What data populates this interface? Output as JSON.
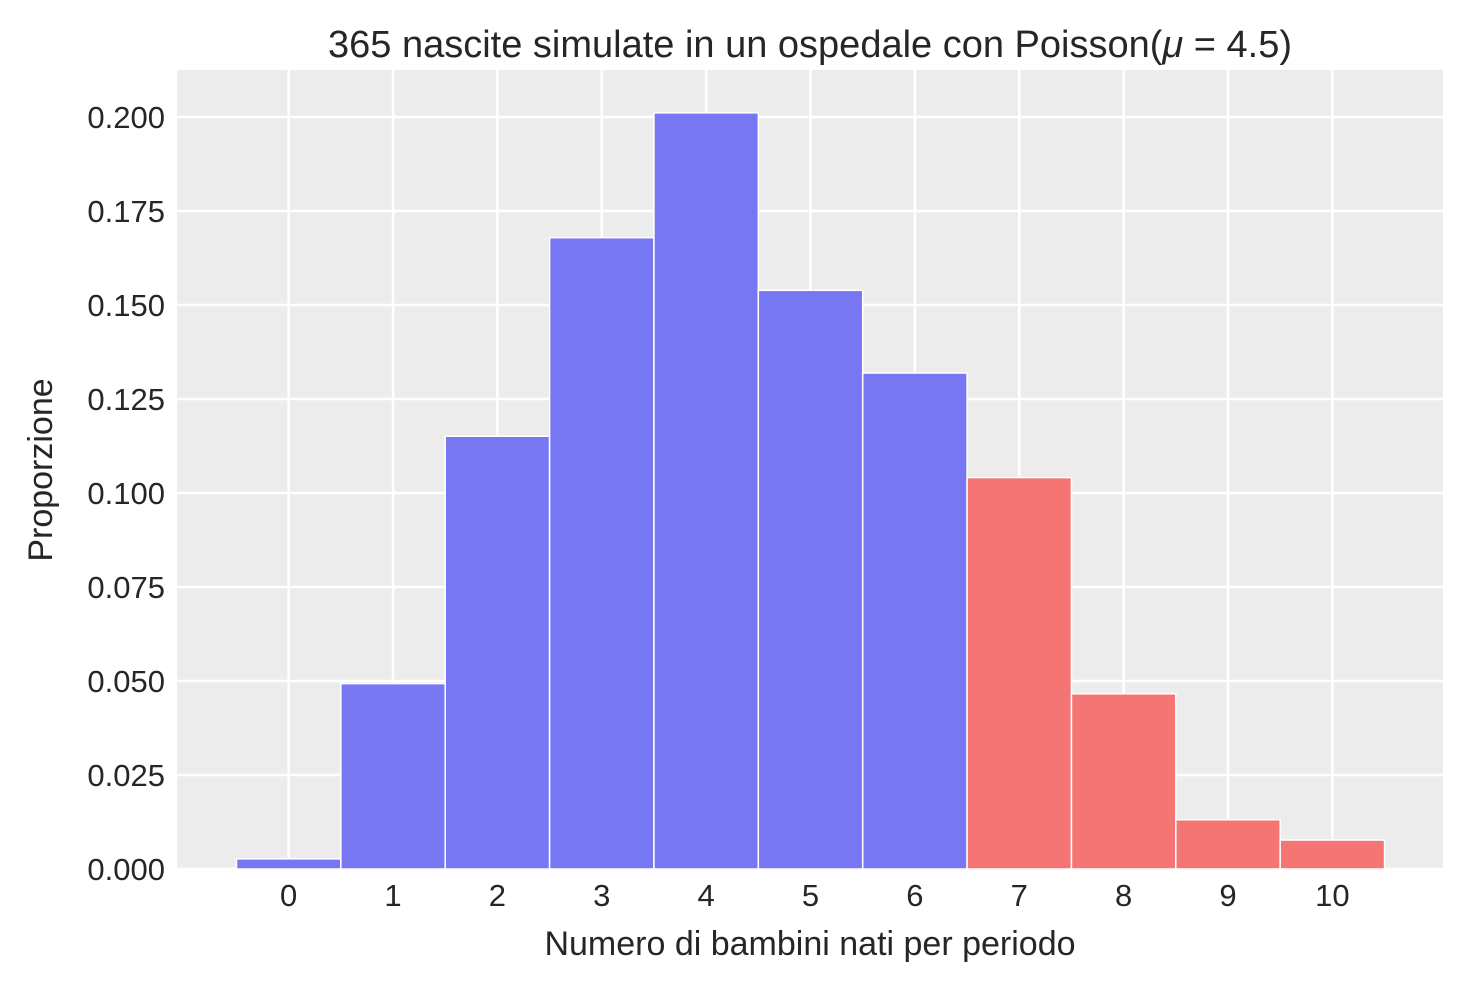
{
  "chart_data": {
    "type": "bar",
    "title_main": "365 nascite simulate in un ospedale con Poisson(",
    "title_mu": "μ",
    "title_tail": " = 4.5)",
    "xlabel": "Numero di bambini nati per periodo",
    "ylabel": "Proporzione",
    "categories": [
      "0",
      "1",
      "2",
      "3",
      "4",
      "5",
      "6",
      "7",
      "8",
      "9",
      "10"
    ],
    "values": [
      0.0027,
      0.0493,
      0.1151,
      0.1679,
      0.2011,
      0.1539,
      0.1319,
      0.1041,
      0.0466,
      0.0131,
      0.0077
    ],
    "highlight_from": 7,
    "colors": {
      "base": "#7777f4",
      "highlight": "#f57575",
      "background": "#ececec",
      "grid": "#ffffff"
    },
    "xlim": [
      -1.07,
      11.06
    ],
    "ylim": [
      0,
      0.2125
    ],
    "yticks": [
      "0.000",
      "0.025",
      "0.050",
      "0.075",
      "0.100",
      "0.125",
      "0.150",
      "0.175",
      "0.200"
    ],
    "grid": true
  }
}
